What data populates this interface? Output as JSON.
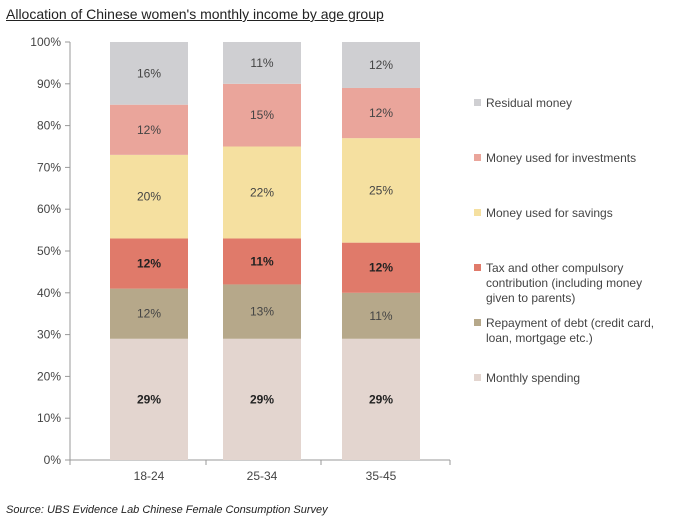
{
  "chart_data": {
    "type": "bar",
    "stacked": true,
    "title": "Allocation of Chinese women's monthly income by age group",
    "source": "Source: UBS Evidence Lab Chinese Female Consumption Survey",
    "categories": [
      "18-24",
      "25-34",
      "35-45"
    ],
    "ylim": [
      0,
      100
    ],
    "yticks": [
      "0%",
      "10%",
      "20%",
      "30%",
      "40%",
      "50%",
      "60%",
      "70%",
      "80%",
      "90%",
      "100%"
    ],
    "legend_position": "right",
    "series": [
      {
        "name": "Monthly spending",
        "values": [
          29,
          29,
          29
        ],
        "labels": [
          "29%",
          "29%",
          "29%"
        ],
        "color": "#e3d5cf",
        "bold": true
      },
      {
        "name": "Repayment of debt (credit card, loan, mortgage etc.)",
        "legend_lines": [
          "Repayment of debt (credit card,",
          "loan, mortgage etc.)"
        ],
        "values": [
          12,
          13,
          11
        ],
        "labels": [
          "12%",
          "13%",
          "11%"
        ],
        "color": "#b6a88a",
        "bold": false
      },
      {
        "name": "Tax and other compulsory contribution (including money given to parents)",
        "legend_lines": [
          "Tax and other compulsory",
          "contribution (including money",
          "given to parents)"
        ],
        "values": [
          12,
          11,
          12
        ],
        "labels": [
          "12%",
          "11%",
          "12%"
        ],
        "color": "#e07a6a",
        "bold": true
      },
      {
        "name": "Money used for savings",
        "values": [
          20,
          22,
          25
        ],
        "labels": [
          "20%",
          "22%",
          "25%"
        ],
        "color": "#f5e0a0",
        "bold": false
      },
      {
        "name": "Money used for investments",
        "values": [
          12,
          15,
          12
        ],
        "labels": [
          "12%",
          "15%",
          "12%"
        ],
        "color": "#eaa59b",
        "bold": false
      },
      {
        "name": "Residual money",
        "values": [
          16,
          11,
          12
        ],
        "labels": [
          "16%",
          "11%",
          "12%"
        ],
        "color": "#cfcfd2",
        "bold": false
      }
    ]
  }
}
